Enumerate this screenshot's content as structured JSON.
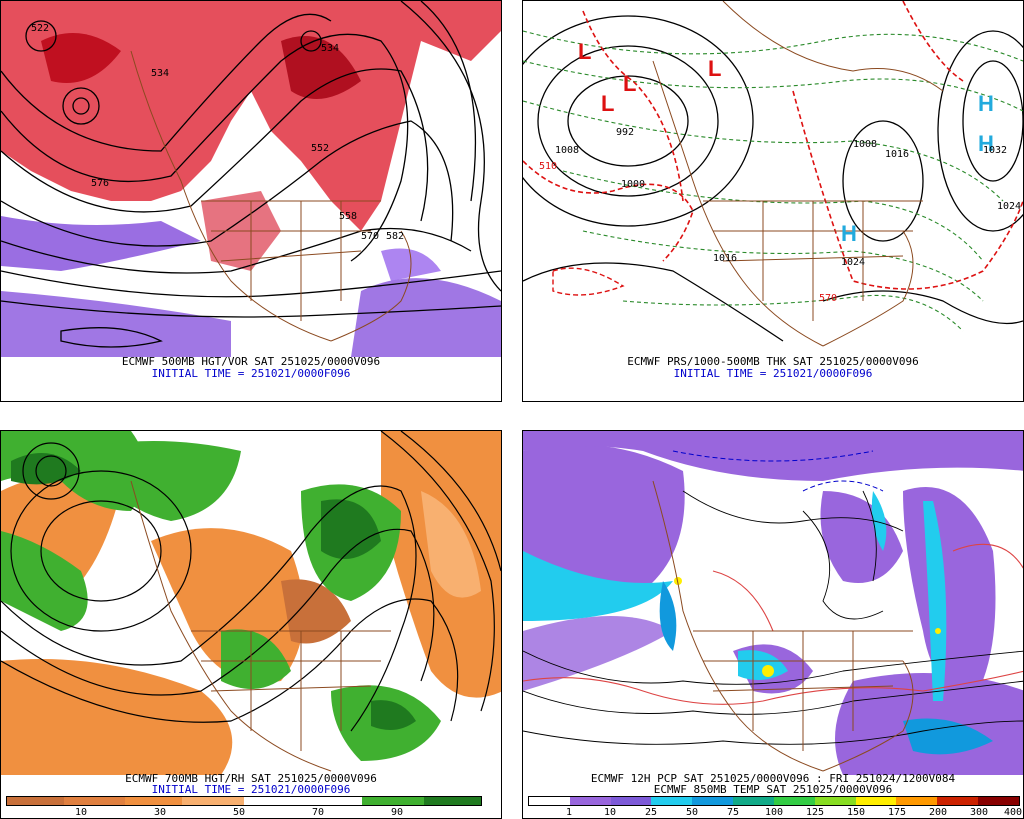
{
  "panels": {
    "tl": {
      "caption1": "ECMWF 500MB HGT/VOR SAT 251025/0000V096",
      "caption2": "INITIAL TIME = 251021/0000F096",
      "labels": [
        "522",
        "534",
        "552",
        "558",
        "570",
        "576",
        "582",
        "534"
      ]
    },
    "tr": {
      "caption1": "ECMWF PRS/1000-500MB THK SAT 251025/0000V096",
      "caption2": "INITIAL TIME = 251021/0000F096",
      "labels": [
        "992",
        "1000",
        "1008",
        "1016",
        "1024",
        "1016",
        "1008",
        "1024",
        "1032",
        "510",
        "570"
      ],
      "lows": [
        "L",
        "L",
        "L",
        "L"
      ],
      "highs": [
        "H",
        "H",
        "H"
      ]
    },
    "bl": {
      "caption1": "ECMWF 700MB HGT/RH SAT 251025/0000V096",
      "caption2": "INITIAL TIME = 251021/0000F096",
      "scale_ticks": [
        "10",
        "30",
        "50",
        "70",
        "90"
      ],
      "colors": {
        "dry_dark": "#c8703a",
        "dry": "#f09040",
        "dry_light": "#f8b070",
        "moist": "#40b030",
        "moist_dark": "#1f7a1f"
      }
    },
    "br": {
      "caption1": "ECMWF 12H PCP SAT 251025/0000V096 : FRI 251024/1200V084",
      "caption2": "ECMWF 850MB TEMP SAT 251025/0000V096",
      "scale_ticks": [
        "1",
        "10",
        "25",
        "50",
        "75",
        "100",
        "125",
        "150",
        "175",
        "200",
        "300",
        "400"
      ],
      "scale_colors": [
        "#ffffff",
        "#9966dd",
        "#7d5ad8",
        "#22ccee",
        "#1199dd",
        "#11aa88",
        "#33cc44",
        "#88dd22",
        "#ffee00",
        "#ff9900",
        "#cc2200",
        "#880000"
      ]
    }
  }
}
